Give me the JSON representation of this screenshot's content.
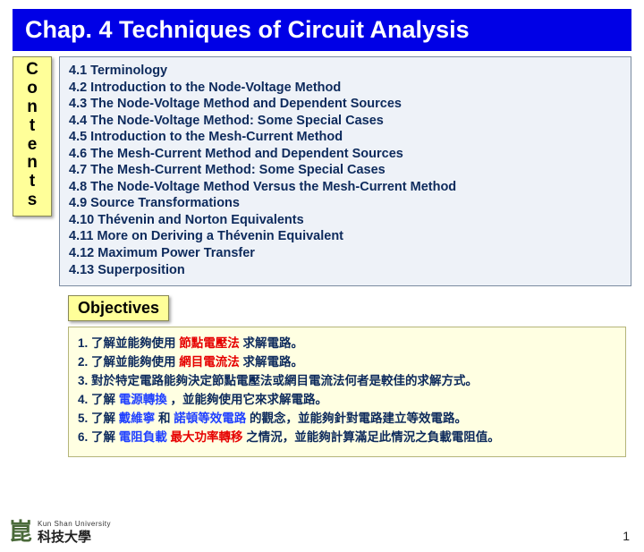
{
  "title": "Chap. 4 Techniques of Circuit Analysis",
  "contents_label_chars": [
    "C",
    "o",
    "n",
    "t",
    "e",
    "n",
    "t",
    "s"
  ],
  "toc": [
    "4.1 Terminology",
    "4.2 Introduction to the Node-Voltage Method",
    "4.3 The Node-Voltage Method and Dependent Sources",
    "4.4 The Node-Voltage Method: Some Special Cases",
    "4.5 Introduction to the Mesh-Current Method",
    "4.6 The Mesh-Current Method and Dependent Sources",
    "4.7 The Mesh-Current Method: Some Special Cases",
    "4.8 The Node-Voltage Method Versus the Mesh-Current Method",
    "4.9 Source Transformations",
    "4.10 Thévenin and Norton Equivalents",
    "4.11 More on Deriving a Thévenin Equivalent",
    "4.12 Maximum Power Transfer",
    "4.13 Superposition"
  ],
  "objectives_label": "Objectives",
  "objectives": [
    [
      {
        "t": "1. 了解並能夠使用 ",
        "c": ""
      },
      {
        "t": "節點電壓法",
        "c": "hl-red"
      },
      {
        "t": " 求解電路。",
        "c": ""
      }
    ],
    [
      {
        "t": "2. 了解並能夠使用 ",
        "c": ""
      },
      {
        "t": "網目電流法",
        "c": "hl-red"
      },
      {
        "t": " 求解電路。",
        "c": ""
      }
    ],
    [
      {
        "t": "3. 對於特定電路能夠決定節點電壓法或網目電流法何者是較佳的求解方式。",
        "c": ""
      }
    ],
    [
      {
        "t": "4. 了解 ",
        "c": ""
      },
      {
        "t": "電源轉換",
        "c": "hl-blue"
      },
      {
        "t": " ，並能夠使用它來求解電路。",
        "c": ""
      }
    ],
    [
      {
        "t": "5. 了解 ",
        "c": ""
      },
      {
        "t": "戴維寧",
        "c": "hl-blue"
      },
      {
        "t": " 和 ",
        "c": ""
      },
      {
        "t": "諾頓等效電路",
        "c": "hl-blue"
      },
      {
        "t": " 的觀念，並能夠針對電路建立等效電路。",
        "c": ""
      }
    ],
    [
      {
        "t": "6. 了解 ",
        "c": ""
      },
      {
        "t": "電阻負載",
        "c": "hl-blue"
      },
      {
        "t": " ",
        "c": ""
      },
      {
        "t": "最大功率轉移",
        "c": "hl-red"
      },
      {
        "t": " 之情況，並能夠計算滿足此情況之負載電阻值。",
        "c": ""
      }
    ]
  ],
  "page_number": "1",
  "logo": {
    "mark": "崑",
    "en": "Kun Shan University",
    "zh": "科技大學"
  },
  "colors": {
    "title_bg": "#0000e6",
    "title_fg": "#ffffff",
    "label_bg": "#ffff99",
    "toc_bg": "#eef2f8",
    "toc_border": "#7a8aa0",
    "toc_text": "#0d2a5c",
    "obj_bg": "#ffffe2",
    "red": "#e60000",
    "blue": "#2040ff"
  }
}
